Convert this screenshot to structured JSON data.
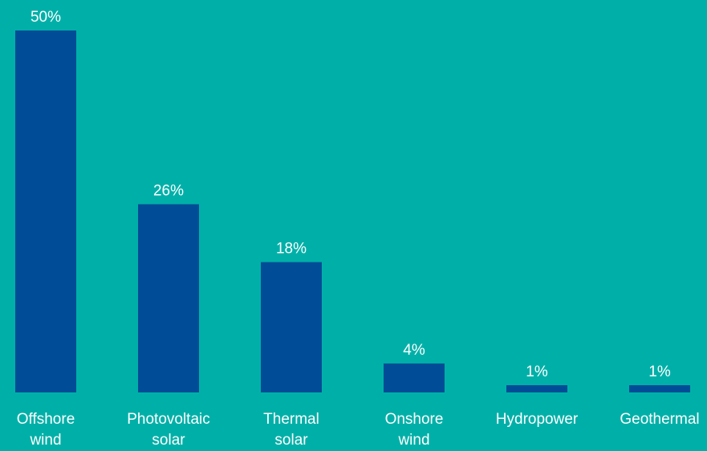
{
  "chart_data": {
    "type": "bar",
    "categories": [
      [
        "Offshore",
        "wind"
      ],
      [
        "Photovoltaic",
        "solar"
      ],
      [
        "Thermal",
        "solar"
      ],
      [
        "Onshore",
        "wind"
      ],
      [
        "Hydropower"
      ],
      [
        "Geothermal"
      ]
    ],
    "values": [
      50,
      26,
      18,
      4,
      1,
      1
    ],
    "value_labels": [
      "50%",
      "26%",
      "18%",
      "4%",
      "1%",
      "1%"
    ],
    "ylim": [
      0,
      50
    ],
    "grid": false,
    "axes_visible": false,
    "colors": {
      "background": "#00b0a8",
      "bar": "#004c97",
      "text": "#ffffff"
    }
  }
}
